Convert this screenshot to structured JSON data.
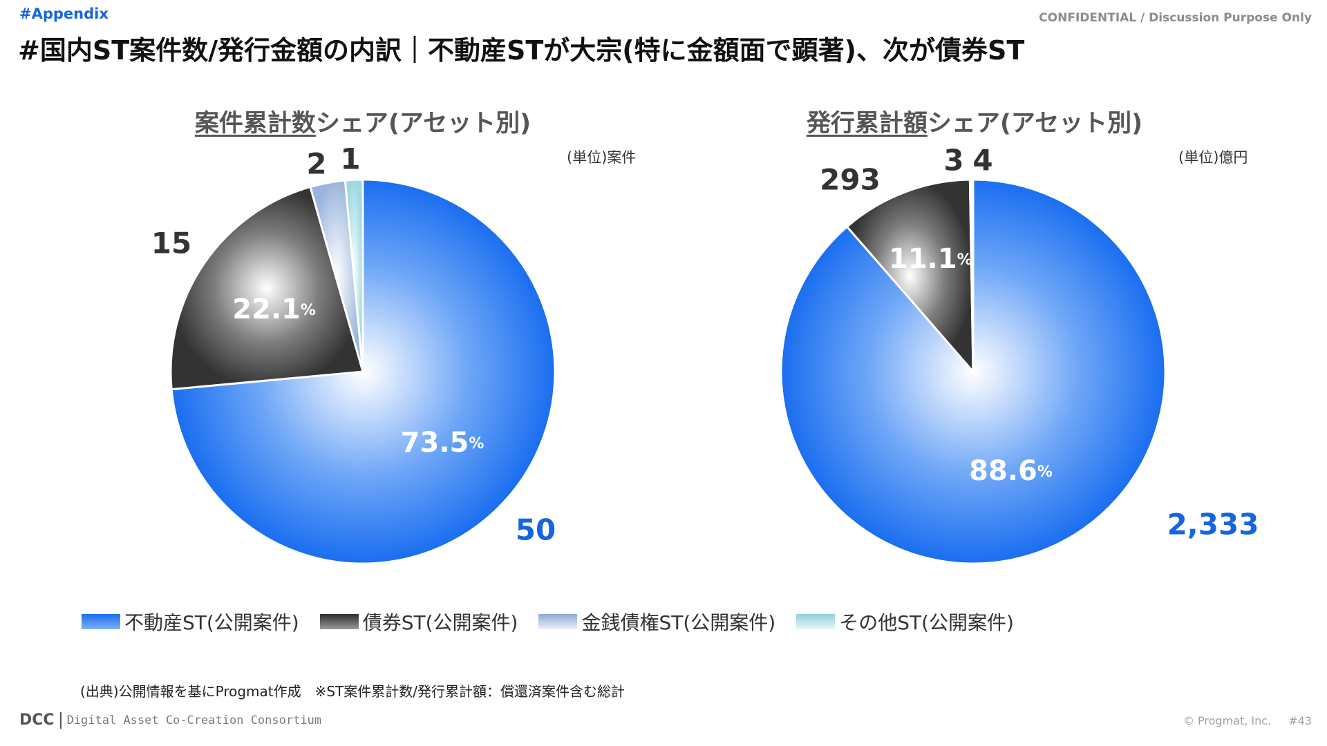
{
  "header": {
    "tag": "#Appendix",
    "confidential": "CONFIDENTIAL / Discussion Purpose Only",
    "title": "#国内ST案件数/発行金額の内訳｜不動産STが大宗(特に金額面で顕著)、次が債券ST"
  },
  "colors": {
    "real_estate": "#1a6ef0",
    "bond": "#3c3c3c",
    "monetary_claim": "#9ab5dc",
    "other": "#9ed8e2",
    "accent_label": "#1565e0"
  },
  "chart_data": [
    {
      "type": "pie",
      "title_underlined": "案件累計数",
      "title_rest": "シェア(アセット別)",
      "unit": "(単位)案件",
      "slices": [
        {
          "name": "不動産ST(公開案件)",
          "value": 50,
          "value_label": "50",
          "percent_label": "73.5",
          "percent_sign": "%"
        },
        {
          "name": "債券ST(公開案件)",
          "value": 15,
          "value_label": "15",
          "percent_label": "22.1",
          "percent_sign": "%"
        },
        {
          "name": "金銭債権ST(公開案件)",
          "value": 2,
          "value_label": "2"
        },
        {
          "name": "その他ST(公開案件)",
          "value": 1,
          "value_label": "1"
        }
      ]
    },
    {
      "type": "pie",
      "title_underlined": "発行累計額",
      "title_rest": "シェア(アセット別)",
      "unit": "(単位)億円",
      "slices": [
        {
          "name": "不動産ST(公開案件)",
          "value": 2333,
          "value_label": "2,333",
          "percent_label": "88.6",
          "percent_sign": "%"
        },
        {
          "name": "債券ST(公開案件)",
          "value": 293,
          "value_label": "293",
          "percent_label": "11.1",
          "percent_sign": "%"
        },
        {
          "name": "金銭債権ST(公開案件)",
          "value": 3,
          "value_label": "3"
        },
        {
          "name": "その他ST(公開案件)",
          "value": 4,
          "value_label": "4"
        }
      ]
    }
  ],
  "legend": [
    {
      "label": "不動産ST(公開案件)"
    },
    {
      "label": "債券ST(公開案件)"
    },
    {
      "label": "金銭債権ST(公開案件)"
    },
    {
      "label": "その他ST(公開案件)"
    }
  ],
  "footer": {
    "source": "(出典)公開情報を基にProgmat作成　※ST案件累計数/発行累計額：償還済案件含む総計",
    "logo_text": "DCC",
    "logo_subtitle": "Digital Asset Co-Creation Consortium",
    "copyright": "© Progmat, Inc.",
    "page": "#43"
  }
}
